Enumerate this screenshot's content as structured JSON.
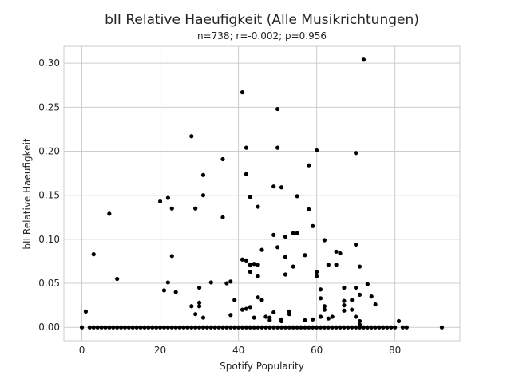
{
  "chart_data": {
    "type": "scatter",
    "title": "bII Relative Haeufigkeit (Alle Musikrichtungen)",
    "subtitle": "n=738; r=-0.002; p=0.956",
    "xlabel": "Spotify Popularity",
    "ylabel": "bII Relative Haeufigkeit",
    "xlim": [
      -4.6,
      96.6
    ],
    "ylim": [
      -0.0152,
      0.3192
    ],
    "xticks": [
      0,
      20,
      40,
      60,
      80
    ],
    "yticks": [
      0.0,
      0.05,
      0.1,
      0.15,
      0.2,
      0.25,
      0.3
    ],
    "ytick_labels": [
      "0.00",
      "0.05",
      "0.10",
      "0.15",
      "0.20",
      "0.25",
      "0.30"
    ],
    "grid": true,
    "marker_color": "#000000",
    "zero_row": {
      "y": 0,
      "x": [
        0,
        2,
        3,
        4,
        5,
        6,
        7,
        8,
        9,
        10,
        11,
        12,
        13,
        14,
        15,
        16,
        17,
        18,
        19,
        20,
        21,
        22,
        23,
        24,
        25,
        26,
        27,
        28,
        29,
        30,
        31,
        32,
        33,
        34,
        35,
        36,
        37,
        38,
        39,
        40,
        41,
        42,
        43,
        44,
        45,
        46,
        47,
        48,
        49,
        50,
        51,
        52,
        53,
        54,
        55,
        56,
        57,
        58,
        59,
        60,
        61,
        62,
        63,
        64,
        65,
        66,
        67,
        68,
        69,
        70,
        71,
        72,
        73,
        74,
        75,
        76,
        77,
        78,
        79,
        80,
        82,
        83,
        92
      ]
    },
    "points": [
      [
        1,
        0.018
      ],
      [
        3,
        0.083
      ],
      [
        7,
        0.129
      ],
      [
        9,
        0.055
      ],
      [
        20,
        0.143
      ],
      [
        21,
        0.042
      ],
      [
        22,
        0.147
      ],
      [
        22,
        0.051
      ],
      [
        23,
        0.135
      ],
      [
        23,
        0.081
      ],
      [
        24,
        0.04
      ],
      [
        28,
        0.217
      ],
      [
        28,
        0.024
      ],
      [
        29,
        0.135
      ],
      [
        29,
        0.015
      ],
      [
        30,
        0.045
      ],
      [
        30,
        0.028
      ],
      [
        30,
        0.024
      ],
      [
        31,
        0.173
      ],
      [
        31,
        0.15
      ],
      [
        31,
        0.011
      ],
      [
        33,
        0.051
      ],
      [
        36,
        0.191
      ],
      [
        36,
        0.125
      ],
      [
        37,
        0.05
      ],
      [
        38,
        0.052
      ],
      [
        38,
        0.014
      ],
      [
        39,
        0.031
      ],
      [
        41,
        0.267
      ],
      [
        41,
        0.077
      ],
      [
        41,
        0.02
      ],
      [
        42,
        0.204
      ],
      [
        42,
        0.174
      ],
      [
        42,
        0.076
      ],
      [
        42,
        0.021
      ],
      [
        43,
        0.148
      ],
      [
        43,
        0.071
      ],
      [
        43,
        0.063
      ],
      [
        43,
        0.023
      ],
      [
        44,
        0.072
      ],
      [
        44,
        0.011
      ],
      [
        45,
        0.137
      ],
      [
        45,
        0.071
      ],
      [
        45,
        0.058
      ],
      [
        45,
        0.034
      ],
      [
        46,
        0.088
      ],
      [
        46,
        0.031
      ],
      [
        47,
        0.012
      ],
      [
        48,
        0.008
      ],
      [
        48,
        0.011
      ],
      [
        49,
        0.16
      ],
      [
        49,
        0.105
      ],
      [
        49,
        0.017
      ],
      [
        50,
        0.248
      ],
      [
        50,
        0.204
      ],
      [
        50,
        0.091
      ],
      [
        51,
        0.159
      ],
      [
        51,
        0.009
      ],
      [
        51,
        0.007
      ],
      [
        52,
        0.103
      ],
      [
        52,
        0.08
      ],
      [
        52,
        0.06
      ],
      [
        53,
        0.018
      ],
      [
        53,
        0.015
      ],
      [
        54,
        0.107
      ],
      [
        54,
        0.069
      ],
      [
        55,
        0.149
      ],
      [
        55,
        0.107
      ],
      [
        57,
        0.082
      ],
      [
        57,
        0.008
      ],
      [
        58,
        0.184
      ],
      [
        58,
        0.134
      ],
      [
        59,
        0.115
      ],
      [
        59,
        0.009
      ],
      [
        60,
        0.201
      ],
      [
        60,
        0.063
      ],
      [
        60,
        0.058
      ],
      [
        61,
        0.043
      ],
      [
        61,
        0.033
      ],
      [
        61,
        0.012
      ],
      [
        62,
        0.099
      ],
      [
        62,
        0.024
      ],
      [
        62,
        0.02
      ],
      [
        63,
        0.071
      ],
      [
        63,
        0.01
      ],
      [
        64,
        0.012
      ],
      [
        65,
        0.086
      ],
      [
        65,
        0.071
      ],
      [
        66,
        0.084
      ],
      [
        67,
        0.045
      ],
      [
        67,
        0.03
      ],
      [
        67,
        0.025
      ],
      [
        67,
        0.019
      ],
      [
        69,
        0.031
      ],
      [
        69,
        0.02
      ],
      [
        70,
        0.198
      ],
      [
        70,
        0.094
      ],
      [
        70,
        0.045
      ],
      [
        70,
        0.012
      ],
      [
        71,
        0.069
      ],
      [
        71,
        0.037
      ],
      [
        71,
        0.007
      ],
      [
        71,
        0.003
      ],
      [
        72,
        0.304
      ],
      [
        73,
        0.049
      ],
      [
        74,
        0.035
      ],
      [
        75,
        0.026
      ],
      [
        81,
        0.007
      ]
    ]
  }
}
